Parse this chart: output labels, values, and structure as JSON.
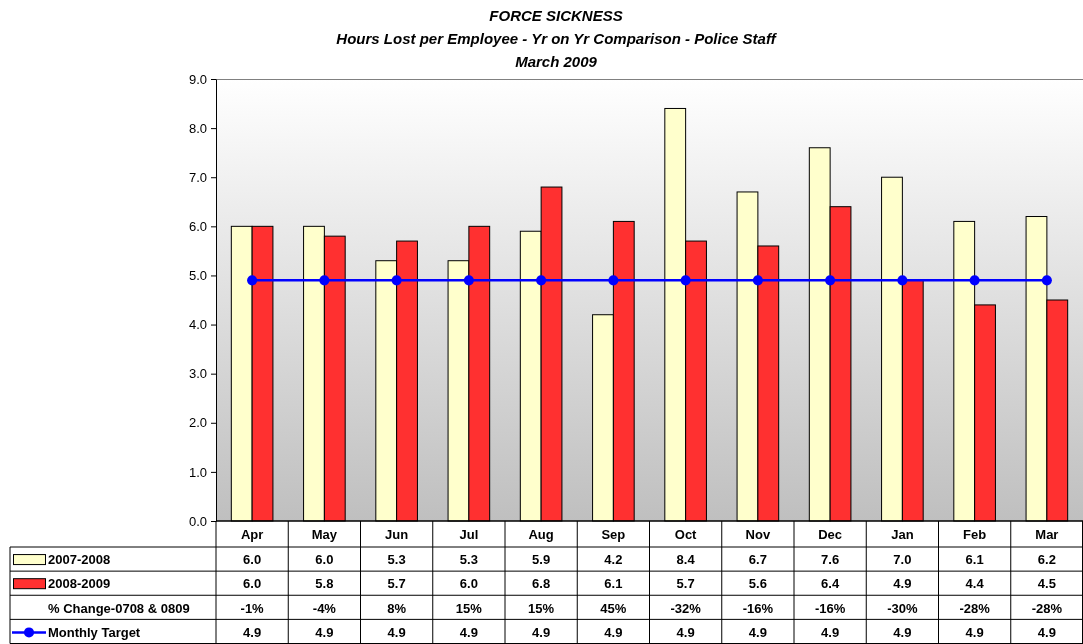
{
  "chart_data": {
    "type": "bar",
    "title": "FORCE SICKNESS",
    "subtitle": "Hours Lost per Employee - Yr on Yr Comparison - Police Staff\nMarch 2009",
    "categories": [
      "Apr",
      "May",
      "Jun",
      "Jul",
      "Aug",
      "Sep",
      "Oct",
      "Nov",
      "Dec",
      "Jan",
      "Feb",
      "Mar"
    ],
    "series": [
      {
        "name": "2007-2008",
        "color": "#ffffcc",
        "values": [
          6.0,
          6.0,
          5.3,
          5.3,
          5.9,
          4.2,
          8.4,
          6.7,
          7.6,
          7.0,
          6.1,
          6.2
        ],
        "value_labels": [
          "6.0",
          "6.0",
          "5.3",
          "5.3",
          "5.9",
          "4.2",
          "8.4",
          "6.7",
          "7.6",
          "7.0",
          "6.1",
          "6.2"
        ]
      },
      {
        "name": "2008-2009",
        "color": "#ff3030",
        "values": [
          6.0,
          5.8,
          5.7,
          6.0,
          6.8,
          6.1,
          5.7,
          5.6,
          6.4,
          4.9,
          4.4,
          4.5
        ],
        "value_labels": [
          "6.0",
          "5.8",
          "5.7",
          "6.0",
          "6.8",
          "6.1",
          "5.7",
          "5.6",
          "6.4",
          "4.9",
          "4.4",
          "4.5"
        ]
      },
      {
        "name": "Monthly Target",
        "type": "line",
        "color": "#0000ff",
        "values": [
          4.9,
          4.9,
          4.9,
          4.9,
          4.9,
          4.9,
          4.9,
          4.9,
          4.9,
          4.9,
          4.9,
          4.9
        ],
        "value_labels": [
          "4.9",
          "4.9",
          "4.9",
          "4.9",
          "4.9",
          "4.9",
          "4.9",
          "4.9",
          "4.9",
          "4.9",
          "4.9",
          "4.9"
        ]
      }
    ],
    "annotations": [
      "% Change-0708 & 0809",
      "-1%",
      "-4%",
      "8%",
      "15%",
      "15%",
      "45%",
      "-32%",
      "-16%",
      "-16%",
      "-30%",
      "-28%",
      "-28%"
    ],
    "ylim": [
      0,
      9
    ],
    "yticks": [
      {
        "value": 0,
        "label": "0.0"
      },
      {
        "value": 1,
        "label": "1.0"
      },
      {
        "value": 2,
        "label": "2.0"
      },
      {
        "value": 3,
        "label": "3.0"
      },
      {
        "value": 4,
        "label": "4.0"
      },
      {
        "value": 5,
        "label": "5.0"
      },
      {
        "value": 6,
        "label": "6.0"
      },
      {
        "value": 7,
        "label": "7.0"
      },
      {
        "value": 8,
        "label": "8.0"
      },
      {
        "value": 9,
        "label": "9.0"
      }
    ],
    "legend": "bottom left",
    "marker": "circle"
  }
}
